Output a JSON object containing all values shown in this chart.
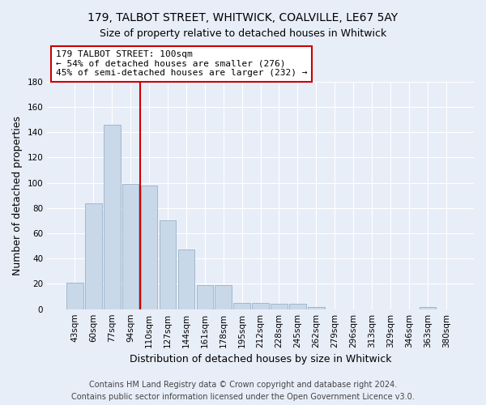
{
  "title_line1": "179, TALBOT STREET, WHITWICK, COALVILLE, LE67 5AY",
  "title_line2": "Size of property relative to detached houses in Whitwick",
  "xlabel": "Distribution of detached houses by size in Whitwick",
  "ylabel": "Number of detached properties",
  "footnote": "Contains HM Land Registry data © Crown copyright and database right 2024.\nContains public sector information licensed under the Open Government Licence v3.0.",
  "bar_labels": [
    "43sqm",
    "60sqm",
    "77sqm",
    "94sqm",
    "110sqm",
    "127sqm",
    "144sqm",
    "161sqm",
    "178sqm",
    "195sqm",
    "212sqm",
    "228sqm",
    "245sqm",
    "262sqm",
    "279sqm",
    "296sqm",
    "313sqm",
    "329sqm",
    "346sqm",
    "363sqm",
    "380sqm"
  ],
  "bar_values": [
    21,
    84,
    146,
    99,
    98,
    70,
    47,
    19,
    19,
    5,
    5,
    4,
    4,
    2,
    0,
    0,
    0,
    0,
    0,
    2,
    0
  ],
  "bar_color": "#c8d8e8",
  "bar_edge_color": "#9ab0c8",
  "property_line_x": 3.5,
  "annotation_text": "179 TALBOT STREET: 100sqm\n← 54% of detached houses are smaller (276)\n45% of semi-detached houses are larger (232) →",
  "annotation_box_color": "#ffffff",
  "annotation_box_edge_color": "#cc0000",
  "vline_color": "#cc0000",
  "ylim": [
    0,
    180
  ],
  "yticks": [
    0,
    20,
    40,
    60,
    80,
    100,
    120,
    140,
    160,
    180
  ],
  "background_color": "#e8eef8",
  "plot_background_color": "#e8eef8",
  "grid_color": "#ffffff",
  "title_fontsize": 10,
  "subtitle_fontsize": 9,
  "axis_label_fontsize": 9,
  "tick_fontsize": 7.5,
  "annotation_fontsize": 8,
  "footnote_fontsize": 7
}
